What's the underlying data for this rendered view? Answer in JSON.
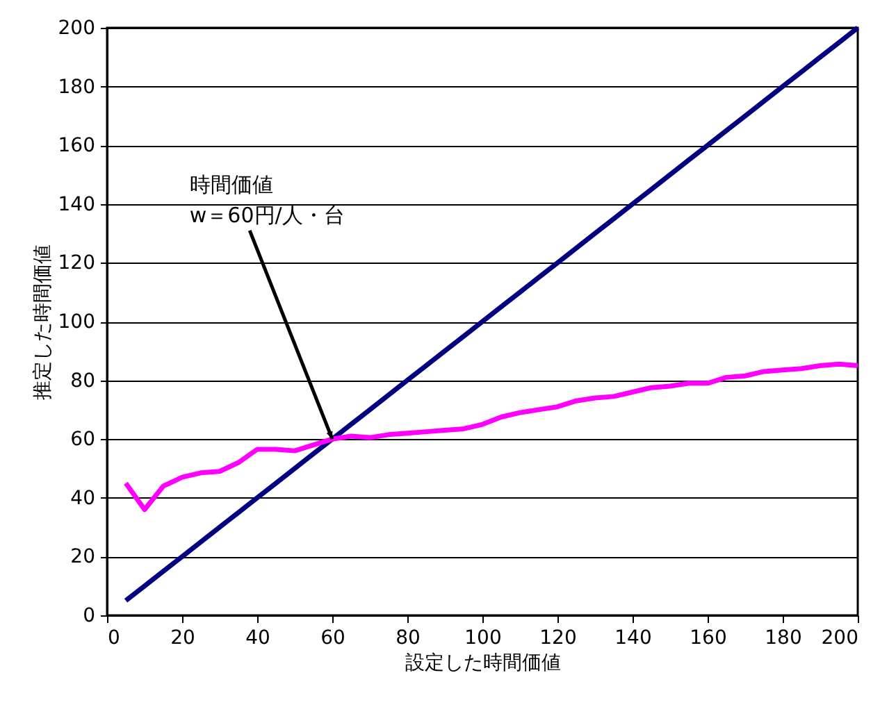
{
  "chart_data": {
    "type": "line",
    "xlabel": "設定した時間価値",
    "ylabel": "推定した時間価値",
    "x": [
      5,
      10,
      15,
      20,
      25,
      30,
      35,
      40,
      45,
      50,
      55,
      60,
      65,
      70,
      75,
      80,
      85,
      90,
      95,
      100,
      105,
      110,
      115,
      120,
      125,
      130,
      135,
      140,
      145,
      150,
      155,
      160,
      165,
      170,
      175,
      180,
      185,
      190,
      195,
      200
    ],
    "series": [
      {
        "color": "#000080",
        "values": [
          5,
          10,
          15,
          20,
          25,
          30,
          35,
          40,
          45,
          50,
          55,
          60,
          65,
          70,
          75,
          80,
          85,
          90,
          95,
          100,
          105,
          110,
          115,
          120,
          125,
          130,
          135,
          140,
          145,
          150,
          155,
          160,
          165,
          170,
          175,
          180,
          185,
          190,
          195,
          200
        ]
      },
      {
        "color": "#ff00ff",
        "values": [
          45,
          36,
          44,
          47,
          48.5,
          49,
          52,
          56.5,
          56.5,
          56,
          58,
          60,
          61,
          60.5,
          61.5,
          62,
          62.5,
          63,
          63.5,
          65,
          67.5,
          69,
          70,
          71,
          73,
          74,
          74.5,
          76,
          77.5,
          78,
          79,
          79,
          81,
          81.5,
          83,
          83.5,
          84,
          85,
          85.5,
          85
        ]
      }
    ],
    "xlim": [
      0,
      200
    ],
    "xticks": [
      0,
      20,
      40,
      60,
      80,
      100,
      120,
      140,
      160,
      180,
      200
    ],
    "ylim": [
      0,
      200
    ],
    "yticks": [
      0,
      20,
      40,
      60,
      80,
      100,
      120,
      140,
      160,
      180,
      200
    ],
    "grid": "y",
    "line_style": "solid",
    "marker": "none",
    "annotations": [
      {
        "text": "時間価値\nw＝60円/人・台",
        "x": 60,
        "y": 60
      }
    ]
  }
}
